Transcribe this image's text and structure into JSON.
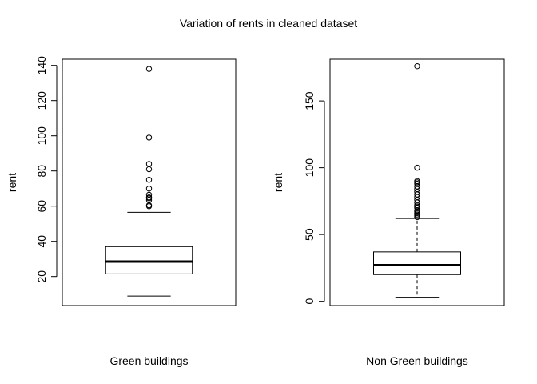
{
  "chart_data": {
    "title": "Variation of rents in cleaned dataset",
    "panels": [
      {
        "type": "boxplot",
        "xlabel": "Green buildings",
        "ylabel": "rent",
        "ylim": [
          3.5,
          143.5
        ],
        "yticks": [
          20,
          40,
          60,
          80,
          100,
          120,
          140
        ],
        "box": {
          "whisker_low": 8.9,
          "q1": 21.5,
          "median": 28.5,
          "q3": 37.0,
          "whisker_high": 56.5
        },
        "outliers": [
          60.0,
          60.5,
          63.5,
          64.5,
          65.0,
          66.5,
          70.0,
          75.0,
          81.0,
          84.0,
          99.0,
          138.0
        ]
      },
      {
        "type": "boxplot",
        "xlabel": "Non Green buildings",
        "ylabel": "rent",
        "ylim": [
          -3.2,
          181.2
        ],
        "yticks": [
          0,
          50,
          100,
          150
        ],
        "box": {
          "whisker_low": 3.0,
          "q1": 20.0,
          "median": 27.0,
          "q3": 37.0,
          "whisker_high": 62.0
        },
        "outliers": [
          63,
          64,
          65,
          66,
          67,
          68,
          70,
          71,
          72,
          74,
          76,
          78,
          80,
          82,
          84,
          86,
          88,
          89,
          90,
          100,
          176
        ]
      }
    ]
  }
}
